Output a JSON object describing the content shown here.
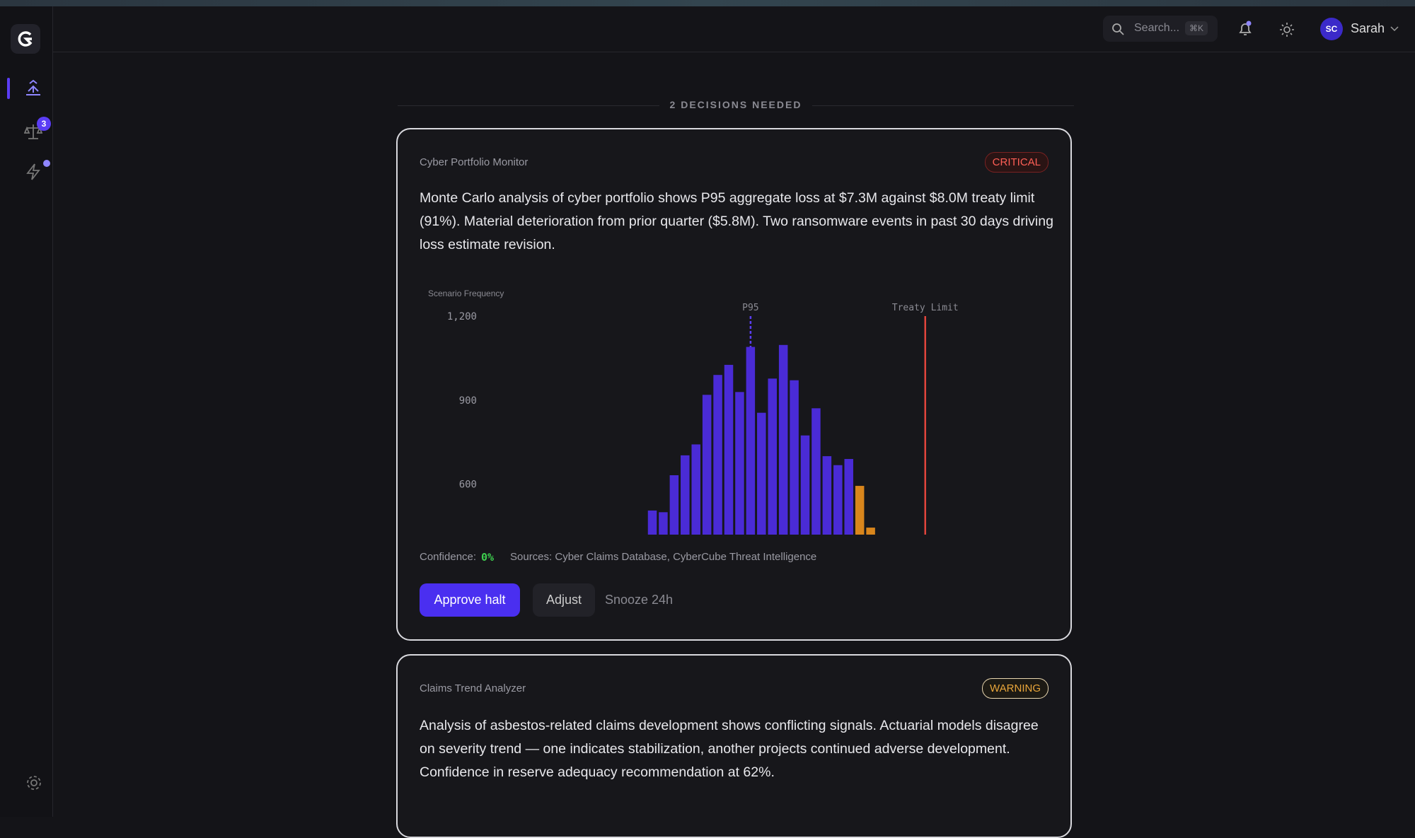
{
  "header": {
    "search_placeholder": "Search...",
    "shortcut": "⌘K",
    "user_initials": "SC",
    "user_name": "Sarah"
  },
  "nav": {
    "badge": "3"
  },
  "section_title": "2 DECISIONS NEEDED",
  "cards": [
    {
      "source": "Cyber Portfolio Monitor",
      "severity": "CRITICAL",
      "description": "Monte Carlo analysis of cyber portfolio shows P95 aggregate loss at $7.3M against $8.0M treaty limit (91%). Material deterioration from prior quarter ($5.8M). Two ransomware events in past 30 days driving loss estimate revision.",
      "confidence_label": "Confidence:",
      "confidence": "0%",
      "sources": "Sources: Cyber Claims Database, CyberCube Threat Intelligence",
      "actions": [
        "Approve halt",
        "Adjust",
        "Snooze 24h"
      ]
    },
    {
      "source": "Claims Trend Analyzer",
      "severity": "WARNING",
      "description": "Analysis of asbestos-related claims development shows conflicting signals. Actuarial models disagree on severity trend — one indicates stabilization, another projects continued adverse development. Confidence in reserve adequacy recommendation at 62%."
    }
  ],
  "chart_data": {
    "type": "bar",
    "y_label": "Scenario Frequency",
    "categories": [
      null,
      null,
      null,
      null,
      null,
      null,
      null,
      null,
      null,
      null,
      null,
      null,
      null,
      null,
      null,
      null,
      null,
      null,
      null,
      null,
      null
    ],
    "series": [
      {
        "color": "#4a2bd6",
        "values": [
          506,
          500,
          632,
          703,
          742,
          919,
          990,
          1026,
          929,
          1090,
          855,
          977,
          1097,
          971,
          774,
          871,
          700,
          668,
          690,
          null,
          null
        ]
      },
      {
        "color": "#d9861c",
        "values": [
          null,
          null,
          null,
          null,
          null,
          null,
          null,
          null,
          null,
          null,
          null,
          null,
          null,
          null,
          null,
          null,
          null,
          null,
          null,
          594,
          445
        ]
      }
    ],
    "ylim": [
      420,
      1200
    ],
    "yticks": [
      {
        "value": 1200,
        "label": "1,200"
      },
      900,
      600
    ],
    "markers": [
      {
        "label": "P95",
        "x": 9,
        "color": "#5b3df5",
        "style": "dashed"
      },
      {
        "label": "Treaty Limit",
        "x": 25,
        "color": "#e0443c",
        "style": "solid"
      }
    ]
  }
}
